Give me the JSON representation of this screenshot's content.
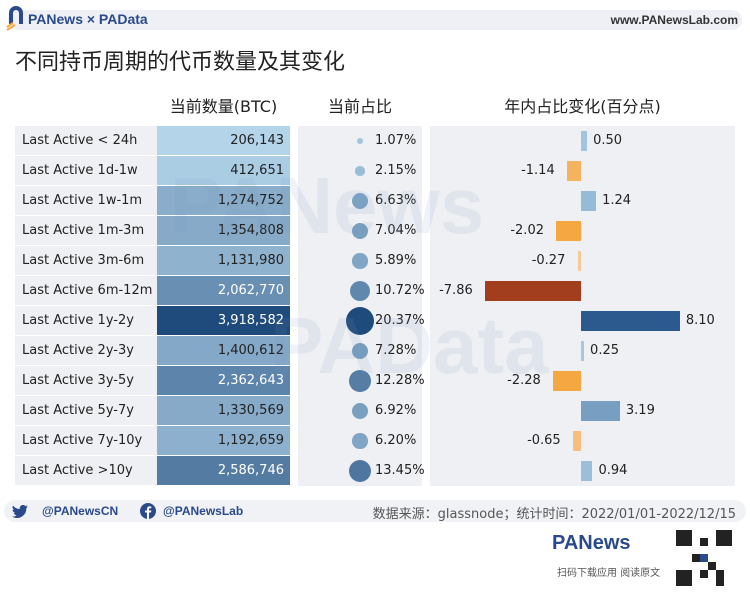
{
  "header": {
    "brand": "PANews × PAData",
    "site": "www.PANewsLab.com"
  },
  "watermark": {
    "a": "PANews",
    "b": "PAData"
  },
  "chart_data": {
    "type": "table",
    "title": "不同持币周期的代币数量及其变化",
    "columns": [
      "当前数量(BTC)",
      "当前占比",
      "年内占比变化(百分点)"
    ],
    "categories": [
      "Last Active < 24h",
      "Last Active 1d-1w",
      "Last Active 1w-1m",
      "Last Active 1m-3m",
      "Last Active 3m-6m",
      "Last Active 6m-12m",
      "Last Active 1y-2y",
      "Last Active 2y-3y",
      "Last Active 3y-5y",
      "Last Active 5y-7y",
      "Last Active 7y-10y",
      "Last Active >10y"
    ],
    "counts": [
      206143,
      412651,
      1274752,
      1354808,
      1131980,
      2062770,
      3918582,
      1400612,
      2362643,
      1330569,
      1192659,
      2586746
    ],
    "counts_text": [
      "206,143",
      "412,651",
      "1,274,752",
      "1,354,808",
      "1,131,980",
      "2,062,770",
      "3,918,582",
      "1,400,612",
      "2,362,643",
      "1,330,569",
      "1,192,659",
      "2,586,746"
    ],
    "shares": [
      1.07,
      2.15,
      6.63,
      7.04,
      5.89,
      10.72,
      20.37,
      7.28,
      12.28,
      6.92,
      6.2,
      13.45
    ],
    "shares_text": [
      "1.07%",
      "2.15%",
      "6.63%",
      "7.04%",
      "5.89%",
      "10.72%",
      "20.37%",
      "7.28%",
      "12.28%",
      "6.92%",
      "6.20%",
      "13.45%"
    ],
    "changes": [
      0.5,
      -1.14,
      1.24,
      -2.02,
      -0.27,
      -7.86,
      8.1,
      0.25,
      -2.28,
      3.19,
      -0.65,
      0.94
    ],
    "changes_text": [
      "0.50",
      "-1.14",
      "1.24",
      "-2.02",
      "-0.27",
      "-7.86",
      "8.10",
      "0.25",
      "-2.28",
      "3.19",
      "-0.65",
      "0.94"
    ],
    "colors": {
      "count_low": "#bcdcf0",
      "count_high": "#1f4a7c",
      "dot": "#5b93c8",
      "pos_low": "#a9cce3",
      "pos_high": "#2d5a8e",
      "neg_low": "#f6d2ab",
      "neg_mid": "#f5a742",
      "neg_high": "#a23e1e"
    }
  },
  "footer": {
    "twitter": "@PANewsCN",
    "facebook": "@PANewsLab",
    "source": "数据来源：glassnode；统计时间：2022/01/01-2022/12/15",
    "logo": "PANews",
    "scan": "扫码下载应用  阅读原文"
  }
}
